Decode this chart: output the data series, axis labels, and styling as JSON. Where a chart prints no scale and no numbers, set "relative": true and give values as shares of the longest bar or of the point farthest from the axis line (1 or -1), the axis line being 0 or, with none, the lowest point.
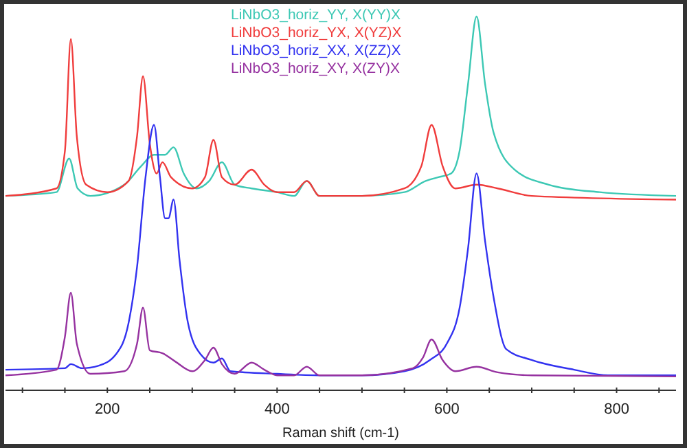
{
  "chart_data": {
    "type": "line",
    "xlabel": "Raman shift (cm-1)",
    "relative": true,
    "legend": "top",
    "grid": false,
    "marker": "none",
    "line_style": "solid",
    "xlim": [
      80,
      870
    ],
    "xticks": [
      {
        "value": 100,
        "label": null
      },
      {
        "value": 150,
        "label": null
      },
      200,
      {
        "value": 250,
        "label": null
      },
      {
        "value": 300,
        "label": null
      },
      {
        "value": 350,
        "label": null
      },
      400,
      {
        "value": 450,
        "label": null
      },
      {
        "value": 500,
        "label": null
      },
      {
        "value": 550,
        "label": null
      },
      600,
      {
        "value": 650,
        "label": null
      },
      {
        "value": 700,
        "label": null
      },
      {
        "value": 750,
        "label": null
      },
      800,
      {
        "value": 850,
        "label": null
      }
    ],
    "series": [
      {
        "name": "LiNbO3_horiz_YY, X(YY)X",
        "color": "#3cc8b4",
        "x": [
          80,
          140,
          155,
          165,
          180,
          220,
          240,
          255,
          268,
          278,
          290,
          305,
          320,
          335,
          350,
          370,
          400,
          420,
          435,
          450,
          500,
          550,
          575,
          590,
          605,
          615,
          625,
          635,
          645,
          655,
          680,
          720,
          780,
          870
        ],
        "values": [
          0.52,
          0.53,
          0.62,
          0.54,
          0.52,
          0.55,
          0.6,
          0.63,
          0.63,
          0.65,
          0.58,
          0.54,
          0.56,
          0.61,
          0.55,
          0.54,
          0.53,
          0.52,
          0.56,
          0.52,
          0.52,
          0.53,
          0.56,
          0.57,
          0.58,
          0.64,
          0.82,
          1,
          0.82,
          0.69,
          0.59,
          0.55,
          0.53,
          0.52
        ]
      },
      {
        "name": "LiNbO3_horiz_YX, X(YZ)X",
        "color": "#f03c3c",
        "x": [
          80,
          140,
          150,
          157,
          164,
          175,
          200,
          225,
          235,
          242,
          250,
          258,
          265,
          275,
          300,
          315,
          325,
          335,
          350,
          370,
          385,
          400,
          420,
          435,
          450,
          500,
          550,
          570,
          582,
          595,
          610,
          635,
          660,
          700,
          870
        ],
        "values": [
          0.52,
          0.54,
          0.64,
          0.94,
          0.68,
          0.55,
          0.53,
          0.56,
          0.68,
          0.84,
          0.66,
          0.58,
          0.61,
          0.57,
          0.54,
          0.57,
          0.67,
          0.57,
          0.55,
          0.59,
          0.55,
          0.53,
          0.53,
          0.56,
          0.52,
          0.52,
          0.54,
          0.6,
          0.71,
          0.6,
          0.54,
          0.55,
          0.54,
          0.52,
          0.51
        ]
      },
      {
        "name": "LiNbO3_horiz_XX, X(ZZ)X",
        "color": "#3232f0",
        "x": [
          80,
          150,
          157,
          170,
          190,
          210,
          225,
          235,
          245,
          255,
          262,
          268,
          272,
          278,
          285,
          295,
          310,
          325,
          335,
          345,
          400,
          450,
          500,
          550,
          580,
          600,
          615,
          625,
          635,
          645,
          655,
          670,
          700,
          750,
          790,
          870
        ],
        "values": [
          0.055,
          0.059,
          0.07,
          0.059,
          0.066,
          0.096,
          0.18,
          0.33,
          0.57,
          0.71,
          0.57,
          0.46,
          0.46,
          0.51,
          0.35,
          0.18,
          0.096,
          0.074,
          0.085,
          0.051,
          0.044,
          0.04,
          0.04,
          0.051,
          0.081,
          0.125,
          0.22,
          0.38,
          0.58,
          0.4,
          0.25,
          0.11,
          0.081,
          0.055,
          0.04,
          0.04
        ]
      },
      {
        "name": "LiNbO3_horiz_XY, X(ZY)X",
        "color": "#9632a0",
        "x": [
          80,
          140,
          150,
          157,
          164,
          180,
          220,
          235,
          242,
          250,
          265,
          280,
          300,
          315,
          325,
          335,
          350,
          370,
          385,
          400,
          420,
          435,
          450,
          500,
          560,
          572,
          582,
          595,
          610,
          635,
          660,
          700,
          870
        ],
        "values": [
          0.04,
          0.055,
          0.143,
          0.261,
          0.125,
          0.044,
          0.051,
          0.125,
          0.221,
          0.107,
          0.099,
          0.077,
          0.051,
          0.081,
          0.114,
          0.07,
          0.044,
          0.074,
          0.055,
          0.04,
          0.04,
          0.063,
          0.04,
          0.04,
          0.059,
          0.088,
          0.136,
          0.081,
          0.051,
          0.063,
          0.048,
          0.04,
          0.037
        ]
      }
    ]
  }
}
